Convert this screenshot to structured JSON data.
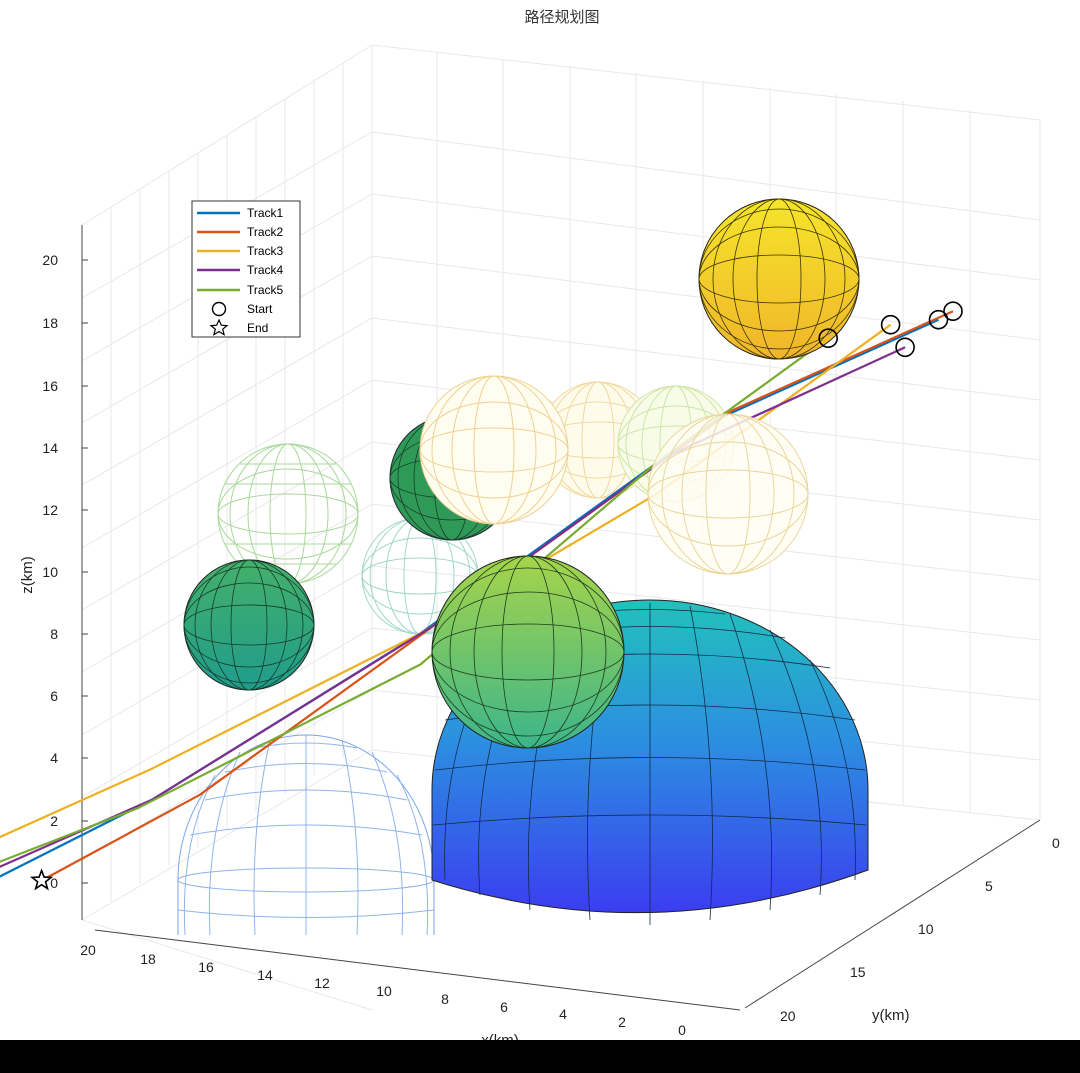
{
  "chart_data": {
    "type": "3d-line",
    "title": "路径规划图",
    "xlabel": "x(km)",
    "ylabel": "y(km)",
    "zlabel": "z(km)",
    "xlim": [
      0,
      20
    ],
    "ylim": [
      0,
      20
    ],
    "zlim": [
      0,
      20
    ],
    "x_ticks": [
      "20",
      "18",
      "16",
      "14",
      "12",
      "10",
      "8",
      "6",
      "4",
      "2",
      "0"
    ],
    "y_ticks": [
      "0",
      "5",
      "10",
      "15",
      "20"
    ],
    "z_ticks": [
      "20",
      "18",
      "16",
      "14",
      "12",
      "10",
      "8",
      "6",
      "4",
      "2",
      "0"
    ],
    "grid": true,
    "legend_position": "top-left",
    "legend": [
      "Track1",
      "Track2",
      "Track3",
      "Track4",
      "Track5",
      "Start",
      "End"
    ],
    "series": [
      {
        "name": "Track1",
        "color": "#0072BD",
        "points": [
          [
            0,
            7,
            18
          ],
          [
            4,
            9,
            16
          ],
          [
            9,
            13,
            11
          ],
          [
            14,
            15,
            7
          ],
          [
            19,
            17,
            4
          ]
        ]
      },
      {
        "name": "Track2",
        "color": "#D95319",
        "points": [
          [
            0,
            6,
            18
          ],
          [
            4,
            8,
            16
          ],
          [
            9,
            12,
            11
          ],
          [
            13,
            15,
            7
          ],
          [
            16,
            16,
            5
          ]
        ]
      },
      {
        "name": "Track3",
        "color": "#EDB120",
        "points": [
          [
            1,
            7,
            18
          ],
          [
            5,
            10,
            14
          ],
          [
            9,
            13,
            11
          ],
          [
            14,
            15,
            8
          ],
          [
            18,
            17,
            6
          ]
        ]
      },
      {
        "name": "Track4",
        "color": "#7E2F8E",
        "points": [
          [
            1,
            6,
            17
          ],
          [
            5,
            9,
            15
          ],
          [
            9,
            12,
            11
          ],
          [
            14,
            15,
            7
          ],
          [
            18,
            16,
            5
          ]
        ]
      },
      {
        "name": "Track5",
        "color": "#77AC30",
        "points": [
          [
            2,
            8,
            18
          ],
          [
            5,
            10,
            15
          ],
          [
            9,
            13,
            10
          ],
          [
            14,
            16,
            7
          ],
          [
            19,
            18,
            5
          ]
        ]
      }
    ],
    "obstacles": [
      {
        "shape": "hemisphere",
        "fill": "solid",
        "center": [
          6,
          12,
          0
        ],
        "radius": 7
      },
      {
        "shape": "hemisphere",
        "fill": "wire",
        "center": [
          14,
          18,
          0
        ],
        "radius": 5
      },
      {
        "shape": "sphere",
        "fill": "solid",
        "center": [
          1,
          4,
          18
        ],
        "radius": 3
      },
      {
        "shape": "sphere",
        "fill": "solid",
        "center": [
          10,
          12,
          8
        ],
        "radius": 3
      },
      {
        "shape": "sphere",
        "fill": "solid",
        "center": [
          18,
          16,
          8
        ],
        "radius": 2.5
      },
      {
        "shape": "sphere",
        "fill": "solid",
        "center": [
          11,
          4,
          13
        ],
        "radius": 2.5
      },
      {
        "shape": "sphere",
        "fill": "wire",
        "center": [
          15,
          10,
          11
        ],
        "radius": 2.5
      },
      {
        "shape": "sphere",
        "fill": "wire",
        "center": [
          18,
          8,
          13
        ],
        "radius": 2.5
      },
      {
        "shape": "sphere",
        "fill": "wire",
        "center": [
          10,
          7,
          14
        ],
        "radius": 2.5
      },
      {
        "shape": "sphere",
        "fill": "wire",
        "center": [
          8,
          4,
          15
        ],
        "radius": 2
      },
      {
        "shape": "sphere",
        "fill": "wire",
        "center": [
          5,
          3,
          15
        ],
        "radius": 2
      },
      {
        "shape": "sphere",
        "fill": "wire",
        "center": [
          4,
          8,
          13
        ],
        "radius": 2.5
      }
    ]
  }
}
